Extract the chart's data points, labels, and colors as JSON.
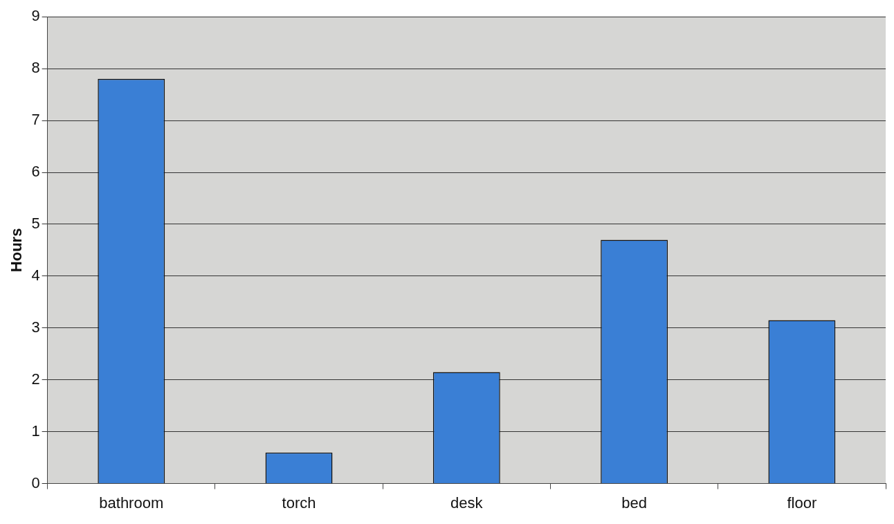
{
  "chart_data": {
    "type": "bar",
    "ylabel": "Hours",
    "categories": [
      "bathroom",
      "torch",
      "desk",
      "bed",
      "floor"
    ],
    "values": [
      7.8,
      0.6,
      2.15,
      4.7,
      3.15
    ],
    "color": "#3a7fd5",
    "ylim": [
      0,
      9
    ],
    "yticks": [
      0,
      1,
      2,
      3,
      4,
      5,
      6,
      7,
      8,
      9
    ],
    "grid": "y",
    "legend": false
  }
}
